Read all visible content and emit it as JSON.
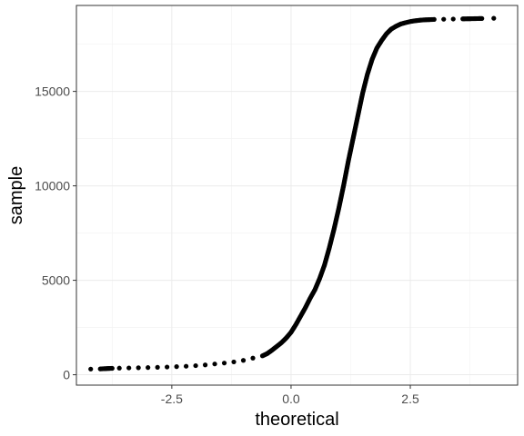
{
  "chart_data": {
    "type": "scatter",
    "title": "",
    "xlabel": "theoretical",
    "ylabel": "sample",
    "xlim": [
      -4.5,
      4.75
    ],
    "ylim": [
      -550,
      19550
    ],
    "x_ticks": [
      -2.5,
      0.0,
      2.5
    ],
    "x_tick_labels": [
      "-2.5",
      "0.0",
      "2.5"
    ],
    "y_ticks": [
      0,
      5000,
      10000,
      15000
    ],
    "y_tick_labels": [
      "0",
      "5000",
      "10000",
      "15000"
    ],
    "grid": true,
    "legend": "none",
    "point_color": "#000000",
    "series": [
      {
        "x": [
          -4.2,
          -4.0,
          -3.92,
          -3.85,
          -3.75,
          -3.6,
          -3.4,
          -3.2,
          -3.0,
          -2.8,
          -2.6,
          -2.4,
          -2.2,
          -2.0,
          -1.8,
          -1.6,
          -1.4,
          -1.2,
          -1.0,
          -0.8,
          -0.6,
          -0.5,
          -0.4,
          -0.3,
          -0.2,
          -0.1,
          0.0,
          0.1,
          0.2,
          0.3,
          0.4,
          0.5,
          0.6,
          0.7,
          0.8,
          0.9,
          1.0,
          1.1,
          1.2,
          1.3,
          1.4,
          1.5,
          1.6,
          1.7,
          1.8,
          1.9,
          2.0,
          2.1,
          2.2,
          2.3,
          2.4,
          2.5,
          2.6,
          2.7,
          2.8,
          2.9,
          3.0,
          3.2,
          3.4,
          3.6,
          3.7,
          3.8,
          3.9,
          4.0,
          4.25
        ],
        "y": [
          300,
          310,
          320,
          330,
          340,
          350,
          360,
          370,
          380,
          395,
          410,
          430,
          450,
          480,
          520,
          570,
          620,
          680,
          760,
          880,
          1000,
          1120,
          1300,
          1500,
          1700,
          1950,
          2250,
          2650,
          3100,
          3550,
          4050,
          4500,
          5100,
          5800,
          6700,
          7700,
          8800,
          10000,
          11300,
          12500,
          13700,
          14900,
          15900,
          16700,
          17300,
          17700,
          18050,
          18300,
          18450,
          18570,
          18640,
          18700,
          18740,
          18770,
          18790,
          18800,
          18810,
          18820,
          18830,
          18840,
          18845,
          18850,
          18855,
          18860,
          18870
        ]
      }
    ]
  }
}
